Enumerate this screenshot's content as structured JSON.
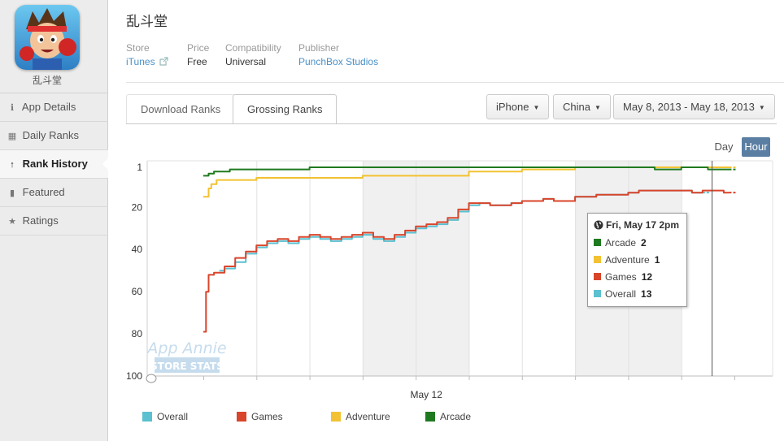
{
  "app": {
    "name": "乱斗堂"
  },
  "sidebar": {
    "items": [
      {
        "label": "App Details",
        "icon": "info-circle-icon",
        "glyph": "ℹ"
      },
      {
        "label": "Daily Ranks",
        "icon": "calendar-icon",
        "glyph": "▦"
      },
      {
        "label": "Rank History",
        "icon": "arrow-up-icon",
        "glyph": "↑"
      },
      {
        "label": "Featured",
        "icon": "bookmark-icon",
        "glyph": "▮"
      },
      {
        "label": "Ratings",
        "icon": "star-icon",
        "glyph": "★"
      }
    ]
  },
  "meta": {
    "store_label": "Store",
    "store_value": "iTunes",
    "store_icon": "external-link-icon",
    "price_label": "Price",
    "price_value": "Free",
    "compat_label": "Compatibility",
    "compat_value": "Universal",
    "publisher_label": "Publisher",
    "publisher_value": "PunchBox Studios"
  },
  "tabs": [
    {
      "label": "Download Ranks"
    },
    {
      "label": "Grossing Ranks"
    }
  ],
  "filters": {
    "device": "iPhone",
    "country": "China",
    "date_range": "May 8, 2013 - May 18, 2013"
  },
  "granularity": {
    "day": "Day",
    "hour": "Hour"
  },
  "colors": {
    "overall": "#5bc0d0",
    "games": "#d9452b",
    "adventure": "#f2c232",
    "arcade": "#1f7a1f",
    "shade": "#f0f0f0",
    "accent": "#4a90c6"
  },
  "watermark": {
    "line1": "App Annie",
    "line2": "STORE STATS"
  },
  "tooltip": {
    "title": "Fri, May 17  2pm",
    "rows": [
      {
        "name": "Arcade",
        "value": "2"
      },
      {
        "name": "Adventure",
        "value": "1"
      },
      {
        "name": "Games",
        "value": "12"
      },
      {
        "name": "Overall",
        "value": "13"
      }
    ]
  },
  "chart_data": {
    "type": "line",
    "xlabel": "",
    "ylabel": "",
    "y_reversed": true,
    "ylim": [
      100,
      1
    ],
    "yticks": [
      1,
      20,
      40,
      60,
      80,
      100
    ],
    "xlim": [
      0,
      10
    ],
    "x_units": "days since May 8, 2013 00:00",
    "x_tick_labels": [
      {
        "x": 4,
        "label": "May 12"
      }
    ],
    "shaded_day_bands": [
      [
        3,
        5
      ],
      [
        7,
        9
      ]
    ],
    "crosshair_x": 9.58,
    "legend": [
      "Overall",
      "Games",
      "Adventure",
      "Arcade"
    ],
    "series": [
      {
        "name": "Arcade",
        "color_key": "arcade",
        "x": [
          0.0,
          0.1,
          0.2,
          0.3,
          0.5,
          1.0,
          1.5,
          2.0,
          2.5,
          3.0,
          3.5,
          4.0,
          4.5,
          5.0,
          5.5,
          6.0,
          6.5,
          7.0,
          7.5,
          8.0,
          8.5,
          9.0,
          9.5,
          9.9
        ],
        "y": [
          5,
          4,
          3,
          3,
          2,
          2,
          2,
          1,
          1,
          1,
          1,
          1,
          1,
          1,
          1,
          1,
          1,
          1,
          1,
          1,
          2,
          1,
          2,
          2
        ]
      },
      {
        "name": "Adventure",
        "color_key": "adventure",
        "x": [
          0.0,
          0.1,
          0.15,
          0.25,
          0.5,
          1.0,
          1.5,
          2.0,
          2.5,
          3.0,
          3.5,
          4.0,
          4.5,
          5.0,
          5.5,
          6.0,
          6.5,
          7.0,
          7.5,
          8.0,
          8.5,
          9.0,
          9.5,
          9.9
        ],
        "y": [
          15,
          11,
          9,
          7,
          7,
          6,
          6,
          6,
          6,
          5,
          5,
          5,
          5,
          3,
          3,
          2,
          2,
          1,
          1,
          1,
          1,
          1,
          1,
          1
        ]
      },
      {
        "name": "Games",
        "color_key": "games",
        "x": [
          0.0,
          0.05,
          0.1,
          0.2,
          0.4,
          0.6,
          0.8,
          1.0,
          1.2,
          1.4,
          1.6,
          1.8,
          2.0,
          2.2,
          2.4,
          2.6,
          2.8,
          3.0,
          3.2,
          3.4,
          3.6,
          3.8,
          4.0,
          4.2,
          4.4,
          4.6,
          4.8,
          5.0,
          5.2,
          5.4,
          5.6,
          5.8,
          6.0,
          6.2,
          6.4,
          6.6,
          6.8,
          7.0,
          7.2,
          7.4,
          7.6,
          7.8,
          8.0,
          8.2,
          8.4,
          8.6,
          8.8,
          9.0,
          9.2,
          9.4,
          9.6,
          9.8,
          9.9
        ],
        "y": [
          79,
          60,
          52,
          51,
          48,
          44,
          41,
          38,
          36,
          35,
          36,
          34,
          33,
          34,
          35,
          34,
          33,
          32,
          34,
          35,
          33,
          31,
          29,
          28,
          27,
          25,
          21,
          18,
          18,
          19,
          19,
          18,
          17,
          17,
          16,
          17,
          17,
          15,
          15,
          14,
          14,
          14,
          13,
          12,
          12,
          12,
          12,
          12,
          13,
          12,
          12,
          13,
          13
        ]
      },
      {
        "name": "Overall",
        "color_key": "overall",
        "x": [
          0.3,
          0.4,
          0.6,
          0.8,
          1.0,
          1.2,
          1.4,
          1.6,
          1.8,
          2.0,
          2.2,
          2.4,
          2.6,
          2.8,
          3.0,
          3.2,
          3.4,
          3.6,
          3.8,
          4.0,
          4.2,
          4.4,
          4.6,
          4.8,
          5.0,
          5.2,
          5.4,
          5.6,
          5.8,
          6.0,
          6.2,
          6.4,
          6.6,
          6.8,
          7.0,
          7.2,
          7.4,
          7.6,
          7.8,
          8.0,
          8.2,
          8.4,
          8.6,
          8.8,
          9.0,
          9.2,
          9.4
        ],
        "y": [
          50,
          49,
          46,
          42,
          39,
          37,
          36,
          37,
          35,
          34,
          35,
          36,
          35,
          34,
          33,
          35,
          36,
          34,
          32,
          30,
          29,
          28,
          26,
          22,
          19,
          18,
          19,
          19,
          18,
          17,
          17,
          16,
          17,
          17,
          15,
          15,
          14,
          14,
          14,
          13,
          12,
          12,
          12,
          12,
          12,
          13,
          13
        ]
      }
    ]
  }
}
